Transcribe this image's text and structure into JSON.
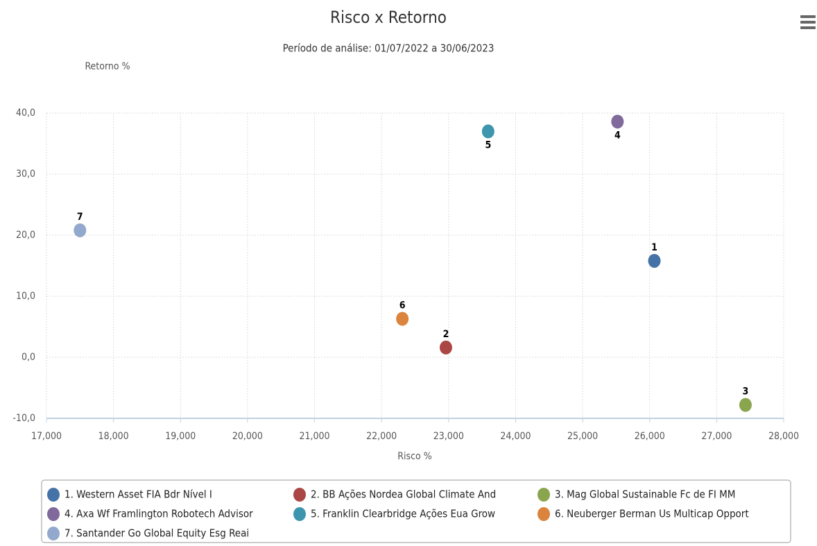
{
  "chart_data": {
    "type": "scatter",
    "title": "Risco x Retorno",
    "subtitle": "Período de análise: 01/07/2022 a 30/06/2023",
    "x_label": "Risco %",
    "y_label": "Retorno %",
    "xlim": [
      17,
      28
    ],
    "ylim": [
      -10,
      40
    ],
    "xticks": [
      {
        "value": 17,
        "label": "17,000"
      },
      {
        "value": 18,
        "label": "18,000"
      },
      {
        "value": 19,
        "label": "19,000"
      },
      {
        "value": 20,
        "label": "20,000"
      },
      {
        "value": 21,
        "label": "21,000"
      },
      {
        "value": 22,
        "label": "22,000"
      },
      {
        "value": 23,
        "label": "23,000"
      },
      {
        "value": 24,
        "label": "24,000"
      },
      {
        "value": 25,
        "label": "25,000"
      },
      {
        "value": 26,
        "label": "26,000"
      },
      {
        "value": 27,
        "label": "27,000"
      },
      {
        "value": 28,
        "label": "28,000"
      }
    ],
    "yticks": [
      {
        "value": -10,
        "label": "-10,0"
      },
      {
        "value": 0,
        "label": "0,0"
      },
      {
        "value": 10,
        "label": "10,0"
      },
      {
        "value": 20,
        "label": "20,0"
      },
      {
        "value": 30,
        "label": "30,0"
      },
      {
        "value": 40,
        "label": "40,0"
      }
    ],
    "grid": true,
    "series": [
      {
        "name": "1. Western Asset FIA Bdr Nível I",
        "color": "#4572a7",
        "x": [
          26.07
        ],
        "values": [
          15.8
        ],
        "data_labels": [
          "1"
        ]
      },
      {
        "name": "2. BB Ações Nordea Global Climate And",
        "color": "#aa4643",
        "x": [
          22.96
        ],
        "values": [
          1.6
        ],
        "data_labels": [
          "2"
        ]
      },
      {
        "name": "3. Mag Global Sustainable Fc de FI MM",
        "color": "#89a54e",
        "x": [
          27.43
        ],
        "values": [
          -7.8
        ],
        "data_labels": [
          "3"
        ]
      },
      {
        "name": "4. Axa Wf Framlington Robotech Advisor",
        "color": "#80699b",
        "x": [
          25.52
        ],
        "values": [
          38.6
        ],
        "data_labels": [
          "4"
        ]
      },
      {
        "name": "5. Franklin Clearbridge Ações Eua Grow",
        "color": "#3d96ae",
        "x": [
          23.59
        ],
        "values": [
          37.0
        ],
        "data_labels": [
          "5"
        ]
      },
      {
        "name": "6. Neuberger Berman Us Multicap Opport",
        "color": "#db843d",
        "x": [
          22.31
        ],
        "values": [
          6.3
        ],
        "data_labels": [
          "6"
        ]
      },
      {
        "name": "7. Santander Go Global Equity Esg Reai",
        "color": "#92a8cd",
        "x": [
          17.5
        ],
        "values": [
          20.8
        ],
        "data_labels": [
          "7"
        ]
      }
    ]
  }
}
